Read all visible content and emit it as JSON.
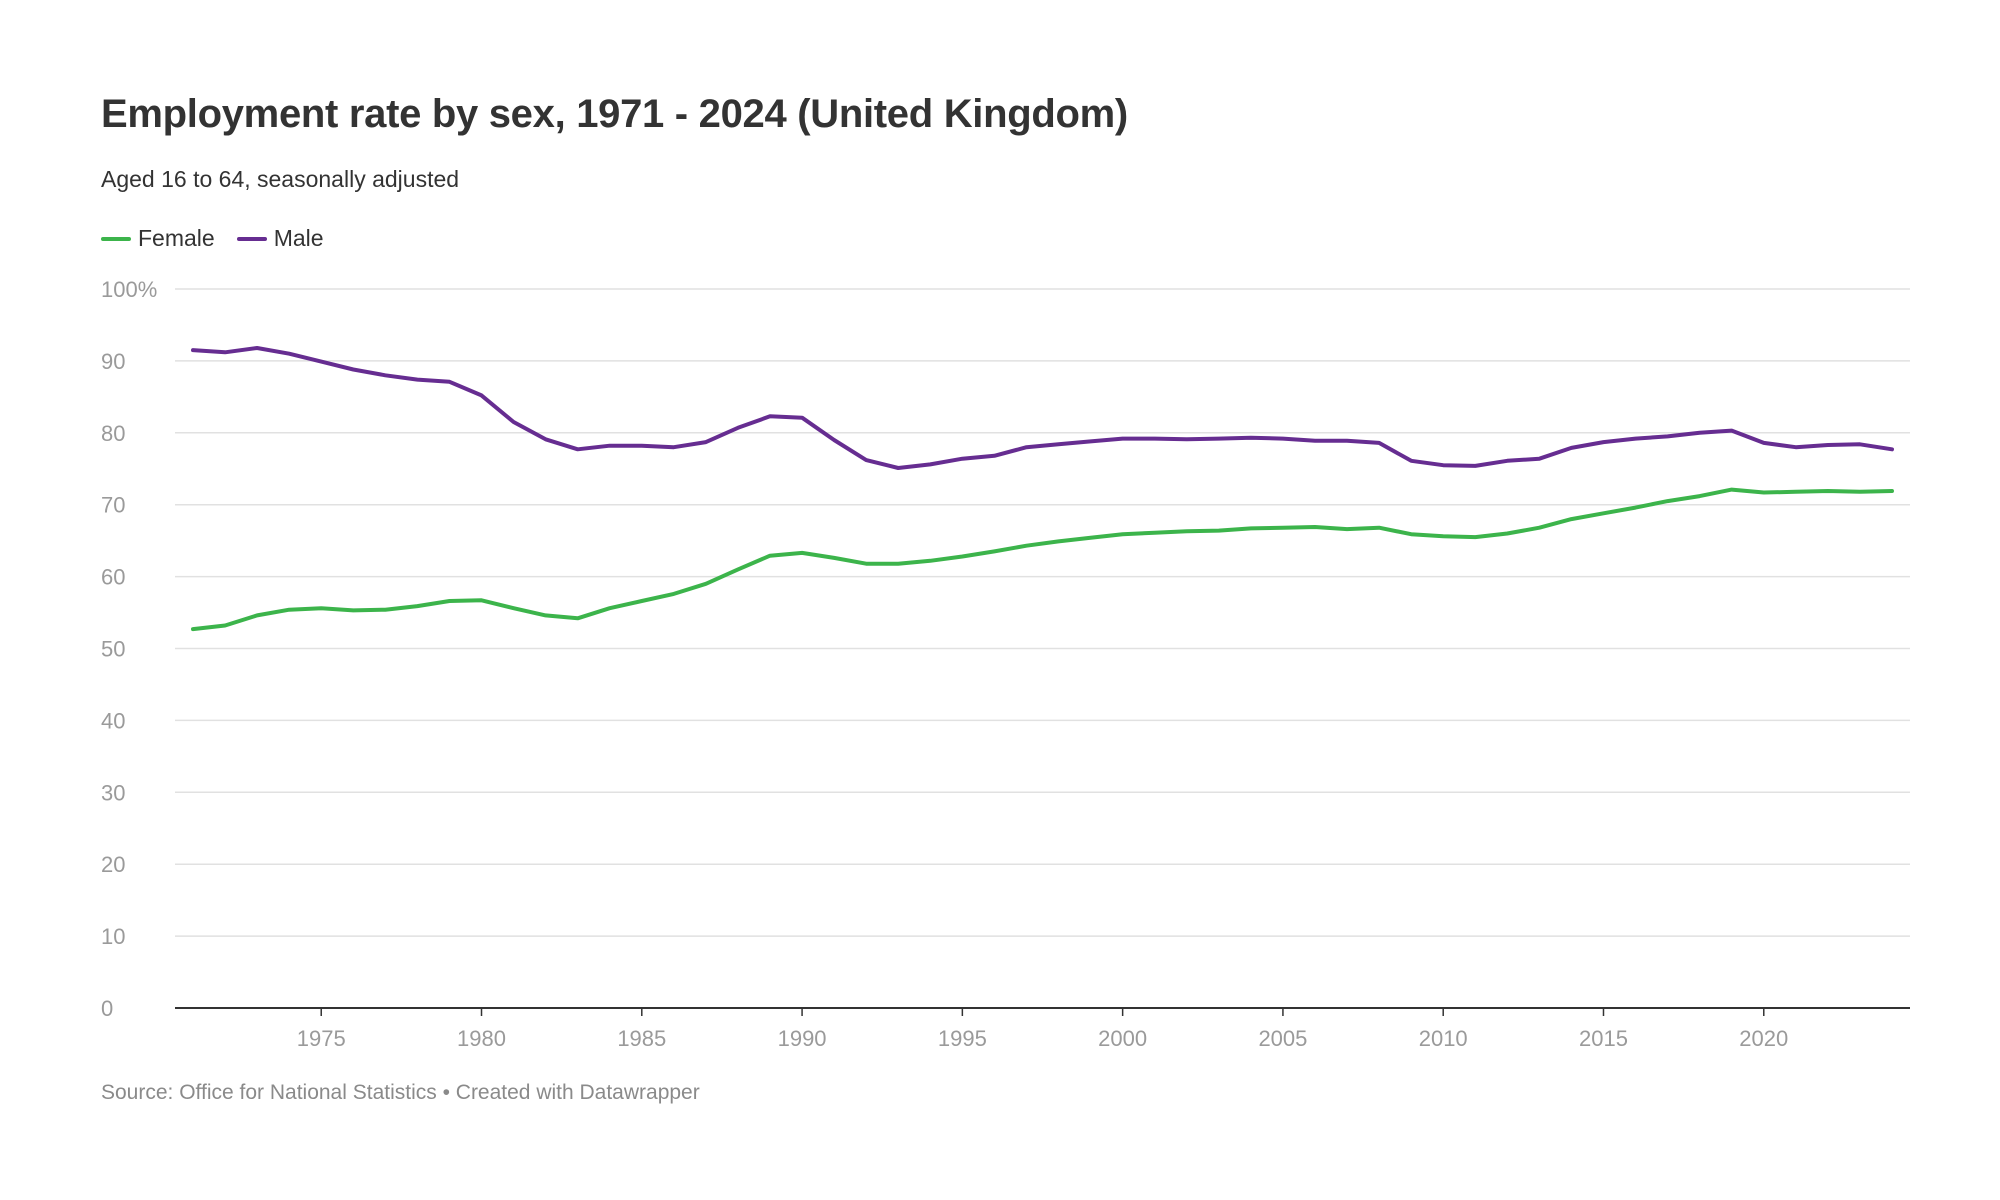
{
  "title": "Employment rate by sex, 1971 - 2024 (United Kingdom)",
  "subtitle": "Aged 16 to 64, seasonally adjusted",
  "footer": "Source: Office for National Statistics • Created with Datawrapper",
  "colors": {
    "female": "#3cb44b",
    "male": "#662d91",
    "grid": "#e1e1e1",
    "axis": "#333333",
    "tick": "#9a9a9a"
  },
  "chart_data": {
    "type": "line",
    "ylim": [
      0,
      100
    ],
    "xlim": [
      1971,
      2024
    ],
    "grid": true,
    "legend": "top-left",
    "y_ticks": [
      0,
      10,
      20,
      30,
      40,
      50,
      60,
      70,
      80,
      90,
      100
    ],
    "y_tick_labels": [
      "0",
      "10",
      "20",
      "30",
      "40",
      "50",
      "60",
      "70",
      "80",
      "90",
      "100%"
    ],
    "x_ticks": [
      1975,
      1980,
      1985,
      1990,
      1995,
      2000,
      2005,
      2010,
      2015,
      2020
    ],
    "x_tick_labels": [
      "1975",
      "1980",
      "1985",
      "1990",
      "1995",
      "2000",
      "2005",
      "2010",
      "2015",
      "2020"
    ],
    "x": [
      1971,
      1972,
      1973,
      1974,
      1975,
      1976,
      1977,
      1978,
      1979,
      1980,
      1981,
      1982,
      1983,
      1984,
      1985,
      1986,
      1987,
      1988,
      1989,
      1990,
      1991,
      1992,
      1993,
      1994,
      1995,
      1996,
      1997,
      1998,
      1999,
      2000,
      2001,
      2002,
      2003,
      2004,
      2005,
      2006,
      2007,
      2008,
      2009,
      2010,
      2011,
      2012,
      2013,
      2014,
      2015,
      2016,
      2017,
      2018,
      2019,
      2020,
      2021,
      2022,
      2023,
      2024
    ],
    "series": [
      {
        "name": "Female",
        "color": "#3cb44b",
        "values": [
          52.7,
          53.2,
          54.6,
          55.4,
          55.6,
          55.3,
          55.4,
          55.9,
          56.6,
          56.7,
          55.6,
          54.6,
          54.2,
          55.6,
          56.6,
          57.6,
          59.0,
          61.0,
          62.9,
          63.3,
          62.6,
          61.8,
          61.8,
          62.2,
          62.8,
          63.5,
          64.3,
          64.9,
          65.4,
          65.9,
          66.1,
          66.3,
          66.4,
          66.7,
          66.8,
          66.9,
          66.6,
          66.8,
          65.9,
          65.6,
          65.5,
          66.0,
          66.8,
          68.0,
          68.8,
          69.6,
          70.5,
          71.2,
          72.1,
          71.7,
          71.8,
          71.9,
          71.8,
          71.9
        ]
      },
      {
        "name": "Male",
        "color": "#662d91",
        "values": [
          91.5,
          91.2,
          91.8,
          91.0,
          89.9,
          88.8,
          88.0,
          87.4,
          87.1,
          85.2,
          81.5,
          79.1,
          77.7,
          78.2,
          78.2,
          78.0,
          78.7,
          80.7,
          82.3,
          82.1,
          79.0,
          76.2,
          75.1,
          75.6,
          76.4,
          76.8,
          78.0,
          78.4,
          78.8,
          79.2,
          79.2,
          79.1,
          79.2,
          79.3,
          79.2,
          78.9,
          78.9,
          78.6,
          76.1,
          75.5,
          75.4,
          76.1,
          76.4,
          77.9,
          78.7,
          79.2,
          79.5,
          80.0,
          80.3,
          78.6,
          78.0,
          78.3,
          78.4,
          77.7
        ]
      }
    ]
  }
}
